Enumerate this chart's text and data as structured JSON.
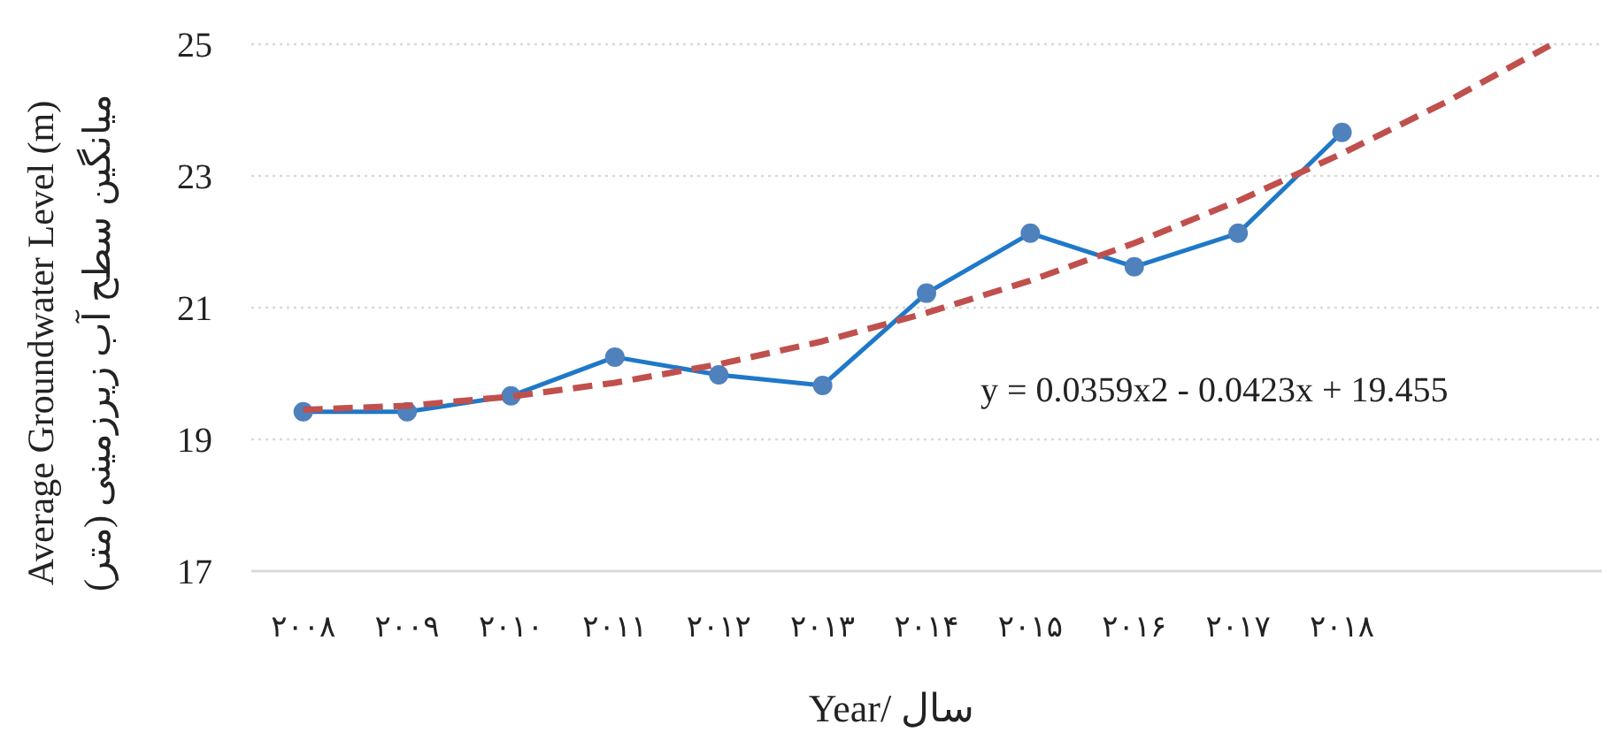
{
  "chart_data": {
    "type": "line",
    "xlabel": "Year/ سال",
    "ylabel": "Average Groundwater Level (m)\nمیانگین سطح آب زیرزمینی (متر)",
    "categories": [
      "۲۰۰۸",
      "۲۰۰۹",
      "۲۰۱۰",
      "۲۰۱۱",
      "۲۰۱۲",
      "۲۰۱۳",
      "۲۰۱۴",
      "۲۰۱۵",
      "۲۰۱۶",
      "۲۰۱۷",
      "۲۰۱۸",
      null,
      null
    ],
    "series": [
      {
        "color": "#1f78c8",
        "marker": "circle",
        "line_style": "solid",
        "values": [
          19.42,
          19.42,
          19.66,
          20.25,
          19.98,
          19.82,
          21.22,
          22.13,
          21.62,
          22.13,
          23.66,
          null,
          null
        ]
      },
      {
        "color": "#c0504d",
        "marker": "none",
        "line_style": "dashed",
        "values": [
          19.45,
          19.51,
          19.65,
          19.86,
          20.14,
          20.49,
          20.92,
          21.41,
          21.98,
          22.62,
          23.34,
          24.12,
          24.98
        ]
      }
    ],
    "ylim": [
      17,
      25
    ],
    "yticks": [
      17,
      19,
      21,
      23,
      25
    ],
    "grid": "y",
    "annotations": [
      "y = 0.0359x2 - 0.0423x + 19.455"
    ]
  }
}
